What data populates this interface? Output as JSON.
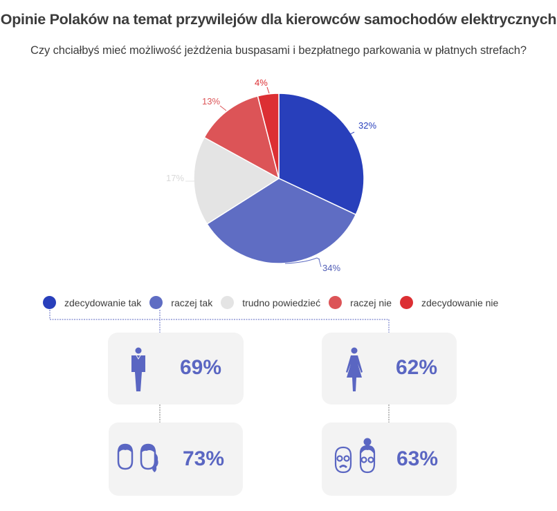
{
  "title": "Opinie Polaków na temat przywilejów dla kierowców samochodów elektrycznych",
  "subtitle": "Czy chciałbyś mieć możliwość jeżdżenia buspasami i bezpłatnego parkowania w płatnych strefach?",
  "chart_data": {
    "type": "pie",
    "title": "Opinie Polaków na temat przywilejów dla kierowców samochodów elektrycznych",
    "subtitle": "Czy chciałbyś mieć możliwość jeżdżenia buspasami i bezpłatnego parkowania w płatnych strefach?",
    "categories": [
      "zdecydowanie tak",
      "raczej tak",
      "trudno powiedzieć",
      "raczej nie",
      "zdecydowanie nie"
    ],
    "values": [
      32,
      34,
      17,
      13,
      4
    ],
    "labels": [
      "32%",
      "34%",
      "17%",
      "13%",
      "4%"
    ],
    "colors": [
      "#283fbb",
      "#5f6dc3",
      "#e4e4e4",
      "#dc5457",
      "#dc2f33"
    ],
    "legend_position": "bottom",
    "breakdown": [
      {
        "group": "mężczyźni",
        "icon": "man-icon",
        "value": "69%"
      },
      {
        "group": "kobiety",
        "icon": "woman-icon",
        "value": "62%"
      },
      {
        "group": "młodsi",
        "icon": "young-people-icon",
        "value": "73%"
      },
      {
        "group": "starsi",
        "icon": "elderly-people-icon",
        "value": "63%"
      }
    ]
  },
  "legend": [
    {
      "label": "zdecydowanie tak",
      "color": "#283fbb"
    },
    {
      "label": "raczej tak",
      "color": "#5f6dc3"
    },
    {
      "label": "trudno powiedzieć",
      "color": "#e4e4e4"
    },
    {
      "label": "raczej nie",
      "color": "#dc5457"
    },
    {
      "label": "zdecydowanie nie",
      "color": "#dc2f33"
    }
  ],
  "cards": {
    "men": {
      "value": "69%"
    },
    "women": {
      "value": "62%"
    },
    "young": {
      "value": "73%"
    },
    "elderly": {
      "value": "63%"
    }
  }
}
